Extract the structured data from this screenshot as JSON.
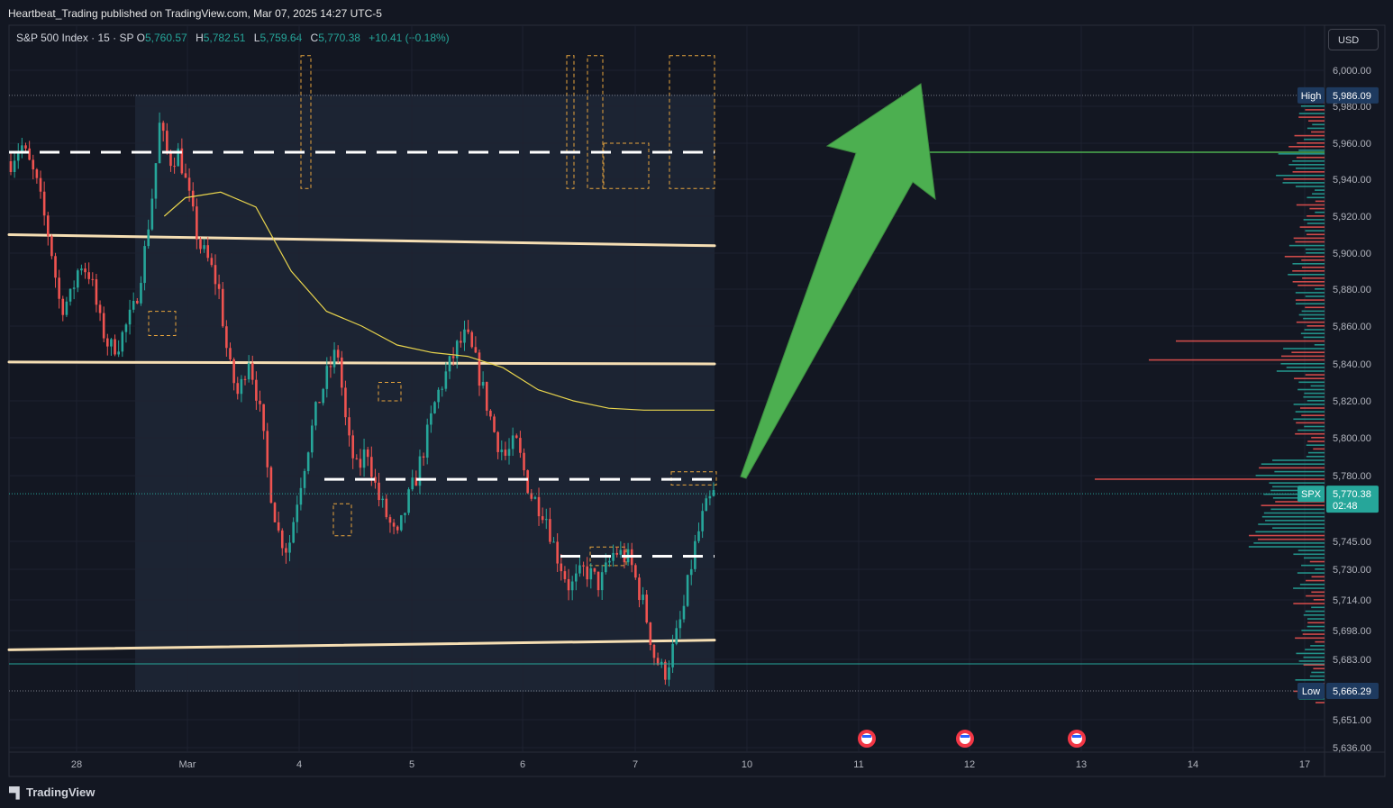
{
  "publisher": "Heartbeat_Trading published on TradingView.com, Mar 07, 2025 14:27 UTC-5",
  "legend": {
    "symbol": "S&P 500 Index · 15 · SP",
    "open_label": "O",
    "open": "5,760.57",
    "high_label": "H",
    "high": "5,782.51",
    "low_label": "L",
    "low": "5,759.64",
    "close_label": "C",
    "close": "5,770.38",
    "change": "+10.41 (+0.18%)"
  },
  "currency_button": "USD",
  "footer_brand": "TradingView",
  "colors": {
    "background": "#131722",
    "up": "#26a69a",
    "down": "#ef5350",
    "arrow": "#4caf50",
    "band": "#f5deb3",
    "ma": "#e8d44d",
    "level": "#ffffff"
  },
  "chart_data": {
    "type": "candlestick",
    "interval": "15",
    "symbol": "SPX",
    "ylim": [
      5636,
      6008
    ],
    "y_ticks": [
      6000,
      5980,
      5960,
      5940,
      5920,
      5900,
      5880,
      5860,
      5840,
      5820,
      5800,
      5780,
      5745,
      5730,
      5714,
      5698,
      5683,
      5651,
      5636
    ],
    "y_tick_labels": [
      "6,000.00",
      "5,980.00",
      "5,960.00",
      "5,940.00",
      "5,920.00",
      "5,900.00",
      "5,880.00",
      "5,860.00",
      "5,840.00",
      "5,820.00",
      "5,800.00",
      "5,780.00",
      "5,745.00",
      "5,730.00",
      "5,714.00",
      "5,698.00",
      "5,683.00",
      "5,651.00",
      "5,636.00"
    ],
    "x_tick_labels": [
      "28",
      "Mar",
      "4",
      "5",
      "6",
      "7",
      "10",
      "11",
      "12",
      "13",
      "14",
      "17"
    ],
    "price_label": {
      "name": "SPX",
      "value": "5,770.38",
      "countdown": "02:48",
      "y": 5770.38
    },
    "high_marker": {
      "name": "High",
      "value": "5,986.09",
      "y": 5986.09
    },
    "low_marker": {
      "name": "Low",
      "value": "5,666.29",
      "y": 5666.29
    },
    "key_levels": [
      5955,
      5778,
      5737
    ],
    "support_line": 5680,
    "bands": [
      {
        "y_start": 5910,
        "y_end": 5904
      },
      {
        "y_start": 5841,
        "y_end": 5840
      },
      {
        "y_start": 5688,
        "y_end": 5693
      }
    ],
    "moving_average": [
      [
        0.22,
        5920
      ],
      [
        0.25,
        5930
      ],
      [
        0.3,
        5933
      ],
      [
        0.35,
        5925
      ],
      [
        0.4,
        5890
      ],
      [
        0.45,
        5868
      ],
      [
        0.5,
        5860
      ],
      [
        0.55,
        5850
      ],
      [
        0.6,
        5846
      ],
      [
        0.65,
        5844
      ],
      [
        0.7,
        5838
      ],
      [
        0.75,
        5826
      ],
      [
        0.8,
        5820
      ],
      [
        0.85,
        5816
      ],
      [
        0.9,
        5815
      ],
      [
        1.0,
        5815
      ]
    ],
    "candle_path": [
      [
        0.0,
        5950
      ],
      [
        0.02,
        5960
      ],
      [
        0.05,
        5940
      ],
      [
        0.08,
        5905
      ],
      [
        0.1,
        5870
      ],
      [
        0.12,
        5875
      ],
      [
        0.14,
        5895
      ],
      [
        0.16,
        5888
      ],
      [
        0.18,
        5862
      ],
      [
        0.2,
        5848
      ],
      [
        0.22,
        5852
      ],
      [
        0.25,
        5870
      ],
      [
        0.27,
        5900
      ],
      [
        0.29,
        5940
      ],
      [
        0.3,
        5970
      ],
      [
        0.32,
        5950
      ],
      [
        0.34,
        5955
      ],
      [
        0.36,
        5930
      ],
      [
        0.38,
        5905
      ],
      [
        0.4,
        5895
      ],
      [
        0.42,
        5880
      ],
      [
        0.44,
        5840
      ],
      [
        0.46,
        5822
      ],
      [
        0.48,
        5845
      ],
      [
        0.5,
        5820
      ],
      [
        0.52,
        5780
      ],
      [
        0.54,
        5750
      ],
      [
        0.56,
        5740
      ],
      [
        0.58,
        5770
      ],
      [
        0.6,
        5795
      ],
      [
        0.62,
        5818
      ],
      [
        0.64,
        5835
      ],
      [
        0.66,
        5848
      ],
      [
        0.68,
        5800
      ],
      [
        0.7,
        5782
      ],
      [
        0.72,
        5795
      ],
      [
        0.74,
        5770
      ],
      [
        0.76,
        5758
      ],
      [
        0.78,
        5745
      ],
      [
        0.8,
        5765
      ],
      [
        0.82,
        5780
      ],
      [
        0.84,
        5800
      ],
      [
        0.86,
        5822
      ],
      [
        0.88,
        5835
      ],
      [
        0.9,
        5848
      ],
      [
        0.92,
        5855
      ],
      [
        0.94,
        5840
      ],
      [
        0.96,
        5820
      ],
      [
        0.98,
        5800
      ],
      [
        1.0,
        5790
      ],
      [
        1.02,
        5798
      ],
      [
        1.05,
        5770
      ],
      [
        1.08,
        5760
      ],
      [
        1.1,
        5740
      ],
      [
        1.13,
        5720
      ],
      [
        1.16,
        5730
      ],
      [
        1.19,
        5722
      ],
      [
        1.22,
        5740
      ],
      [
        1.25,
        5735
      ],
      [
        1.28,
        5710
      ],
      [
        1.3,
        5685
      ],
      [
        1.32,
        5675
      ],
      [
        1.34,
        5690
      ],
      [
        1.36,
        5710
      ],
      [
        1.38,
        5740
      ],
      [
        1.4,
        5760
      ],
      [
        1.42,
        5770
      ]
    ]
  }
}
